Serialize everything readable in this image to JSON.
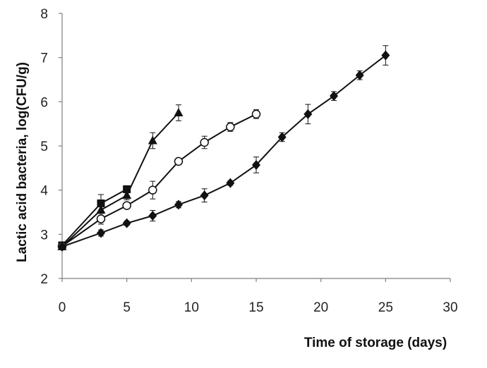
{
  "chart_data": {
    "type": "line",
    "xlabel": "Time of storage (days)",
    "ylabel": "Lactic acid bacteria, log(CFU/g)",
    "xlim": [
      0,
      30
    ],
    "ylim": [
      2,
      8
    ],
    "xticks": [
      0,
      5,
      10,
      15,
      20,
      25,
      30
    ],
    "yticks": [
      2,
      3,
      4,
      5,
      6,
      7,
      8
    ],
    "grid": false,
    "legend": "none",
    "series": [
      {
        "marker": "square",
        "color": "#111111",
        "x": [
          0,
          3,
          5
        ],
        "y": [
          2.75,
          3.7,
          4.02
        ],
        "err": [
          0.05,
          0.2,
          0.08
        ]
      },
      {
        "marker": "triangle",
        "color": "#111111",
        "x": [
          0,
          3,
          5,
          7,
          9
        ],
        "y": [
          2.72,
          3.55,
          3.88,
          5.12,
          5.75
        ],
        "err": [
          0.05,
          0.15,
          0.1,
          0.18,
          0.18
        ]
      },
      {
        "marker": "open-circle",
        "color": "#111111",
        "x": [
          0,
          3,
          5,
          7,
          9,
          11,
          13,
          15
        ],
        "y": [
          2.73,
          3.35,
          3.65,
          4.0,
          4.65,
          5.08,
          5.43,
          5.72
        ],
        "err": [
          0.05,
          0.12,
          0.05,
          0.2,
          0.05,
          0.14,
          0.1,
          0.1
        ]
      },
      {
        "marker": "diamond",
        "color": "#111111",
        "x": [
          0,
          3,
          5,
          7,
          9,
          11,
          13,
          15,
          17,
          19,
          21,
          23,
          25
        ],
        "y": [
          2.72,
          3.03,
          3.25,
          3.42,
          3.67,
          3.88,
          4.16,
          4.57,
          5.2,
          5.72,
          6.13,
          6.6,
          7.05
        ],
        "err": [
          0.05,
          0.07,
          0.05,
          0.12,
          0.07,
          0.15,
          0.05,
          0.18,
          0.1,
          0.22,
          0.1,
          0.1,
          0.22
        ]
      }
    ]
  }
}
